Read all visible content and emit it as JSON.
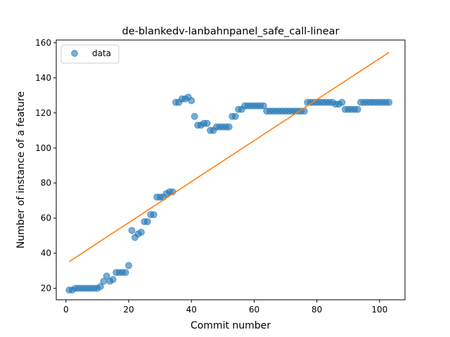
{
  "chart_data": {
    "type": "scatter",
    "title": "de-blankedv-lanbahnpanel_safe_call-linear",
    "xlabel": "Commit number",
    "ylabel": "Number of instance of a feature",
    "xlim": [
      -3.1,
      108.1
    ],
    "ylim": [
      13.45,
      161.55
    ],
    "xticks": [
      0,
      20,
      40,
      60,
      80,
      100
    ],
    "yticks": [
      20,
      40,
      60,
      80,
      100,
      120,
      140,
      160
    ],
    "grid": false,
    "legend": {
      "position": "top-left",
      "entries": [
        "data"
      ]
    },
    "series": [
      {
        "name": "data",
        "kind": "scatter",
        "color": "#1f77b4",
        "alpha": 0.6,
        "x": [
          1,
          2,
          3,
          4,
          5,
          6,
          7,
          8,
          9,
          10,
          11,
          12,
          13,
          14,
          15,
          16,
          17,
          18,
          19,
          20,
          21,
          22,
          23,
          24,
          25,
          26,
          27,
          28,
          29,
          30,
          31,
          32,
          33,
          34,
          35,
          36,
          37,
          38,
          39,
          40,
          41,
          42,
          43,
          44,
          45,
          46,
          47,
          48,
          49,
          50,
          51,
          52,
          53,
          54,
          55,
          56,
          57,
          58,
          59,
          60,
          61,
          62,
          63,
          64,
          65,
          66,
          67,
          68,
          69,
          70,
          71,
          72,
          73,
          74,
          75,
          76,
          77,
          78,
          79,
          80,
          81,
          82,
          83,
          84,
          85,
          86,
          87,
          88,
          89,
          90,
          91,
          92,
          93,
          94,
          95,
          96,
          97,
          98,
          99,
          100,
          101,
          102,
          103
        ],
        "y": [
          19,
          19,
          20,
          20,
          20,
          20,
          20,
          20,
          20,
          20,
          21,
          24,
          27,
          24,
          25,
          29,
          29,
          29,
          29,
          33,
          53,
          49,
          51,
          52,
          58,
          58,
          62,
          62,
          72,
          72,
          72,
          74,
          75,
          75,
          126,
          126,
          128,
          128,
          129,
          127,
          118,
          113,
          113,
          114,
          114,
          110,
          110,
          112,
          112,
          112,
          112,
          112,
          118,
          118,
          122,
          122,
          124,
          124,
          124,
          124,
          124,
          124,
          124,
          121,
          121,
          121,
          121,
          121,
          121,
          121,
          121,
          121,
          121,
          121,
          121,
          121,
          126,
          126,
          126,
          126,
          126,
          126,
          126,
          126,
          126,
          125,
          125,
          126,
          122,
          122,
          122,
          122,
          122,
          126,
          126,
          126,
          126,
          126,
          126,
          126,
          126,
          126,
          126
        ]
      },
      {
        "name": "",
        "kind": "line",
        "color": "#ff7f0e",
        "x": [
          1,
          103
        ],
        "y": [
          35.2,
          154.5
        ]
      }
    ]
  }
}
